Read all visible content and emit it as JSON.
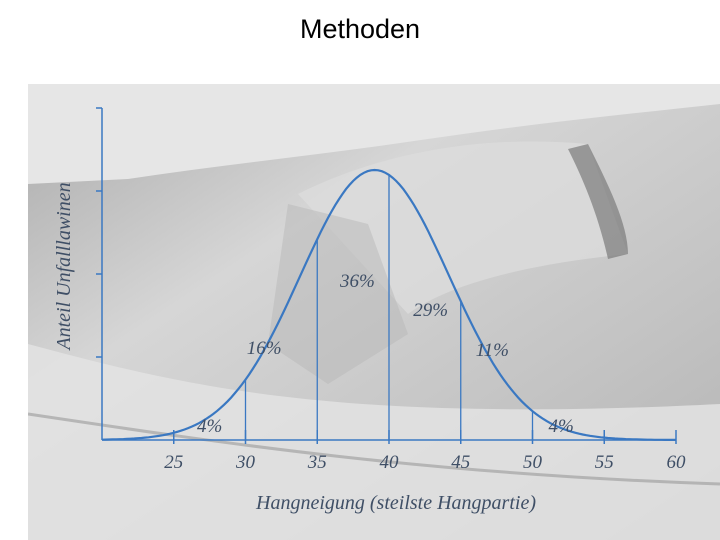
{
  "slide": {
    "title": "Methoden"
  },
  "chart_data": {
    "type": "area",
    "title": "",
    "xlabel": "Hangneigung (steilste Hangpartie)",
    "ylabel": "Anteil Unfalllawinen",
    "x_ticks": [
      25,
      30,
      35,
      40,
      45,
      50,
      55,
      60
    ],
    "xlim": [
      20,
      60
    ],
    "distribution_curve": {
      "peak_x": 39,
      "sigma": 5.2
    },
    "segments": [
      {
        "range": [
          20,
          30
        ],
        "label": "4%",
        "value": 4
      },
      {
        "range": [
          30,
          35
        ],
        "label": "16%",
        "value": 16
      },
      {
        "range": [
          35,
          40
        ],
        "label": "36%",
        "value": 36
      },
      {
        "range": [
          40,
          45
        ],
        "label": "29%",
        "value": 29
      },
      {
        "range": [
          45,
          50
        ],
        "label": "11%",
        "value": 11
      },
      {
        "range": [
          50,
          60
        ],
        "label": "4%",
        "value": 4
      }
    ],
    "y_axis_ticks_shown": true,
    "grid": false,
    "colors": {
      "curve": "#3a78c2",
      "axis": "#3a78c2",
      "text": "#3f4f66",
      "background": "#c9c9c9"
    }
  }
}
